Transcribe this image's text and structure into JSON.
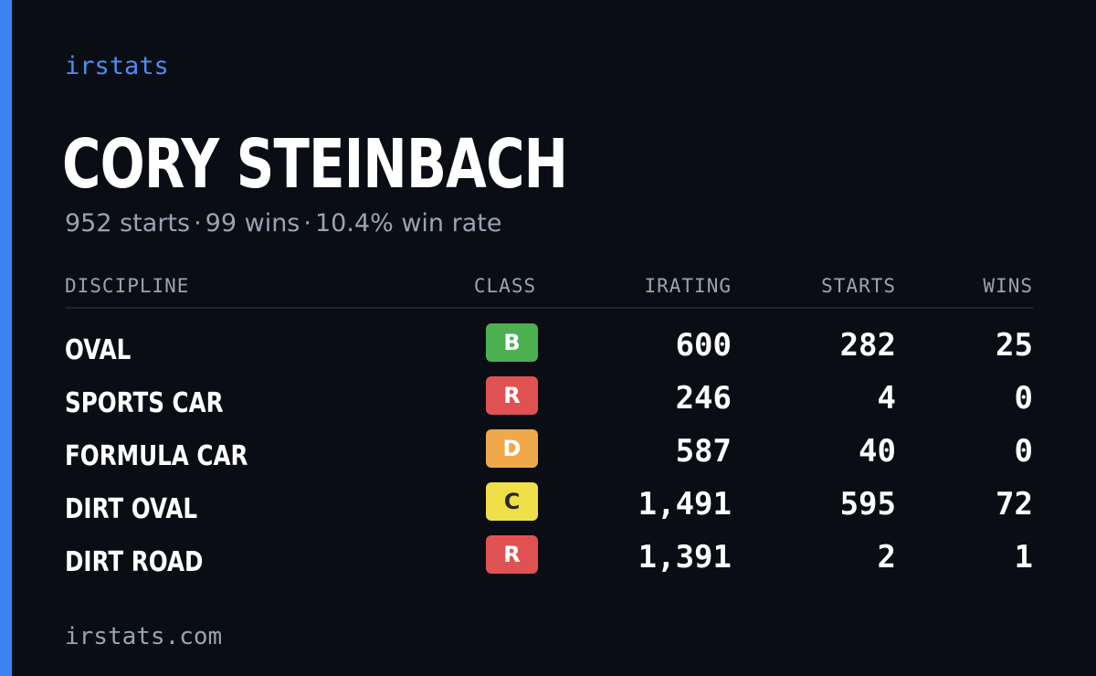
{
  "brand": "irstats",
  "driver": {
    "name": "CORY STEINBACH",
    "summary": {
      "starts": "952 starts",
      "wins": "99 wins",
      "win_rate": "10.4% win rate",
      "separator": "·"
    }
  },
  "colors": {
    "accent": "#3b82f6",
    "background": "#0a0d14",
    "class_B": "#4caf50",
    "class_R": "#e05252",
    "class_D": "#efa94a",
    "class_C": "#efe049"
  },
  "table": {
    "headers": {
      "discipline": "DISCIPLINE",
      "class": "CLASS",
      "irating": "IRATING",
      "starts": "STARTS",
      "wins": "WINS"
    },
    "rows": [
      {
        "discipline": "OVAL",
        "class": "B",
        "class_color": "#4caf50",
        "class_text_color": "#ffffff",
        "irating": "600",
        "starts": "282",
        "wins": "25"
      },
      {
        "discipline": "SPORTS CAR",
        "class": "R",
        "class_color": "#e05252",
        "class_text_color": "#ffffff",
        "irating": "246",
        "starts": "4",
        "wins": "0"
      },
      {
        "discipline": "FORMULA CAR",
        "class": "D",
        "class_color": "#efa94a",
        "class_text_color": "#ffffff",
        "irating": "587",
        "starts": "40",
        "wins": "0"
      },
      {
        "discipline": "DIRT OVAL",
        "class": "C",
        "class_color": "#efe049",
        "class_text_color": "#2a2a2a",
        "irating": "1,491",
        "starts": "595",
        "wins": "72"
      },
      {
        "discipline": "DIRT ROAD",
        "class": "R",
        "class_color": "#e05252",
        "class_text_color": "#ffffff",
        "irating": "1,391",
        "starts": "2",
        "wins": "1"
      }
    ]
  },
  "footer": {
    "url": "irstats.com"
  }
}
